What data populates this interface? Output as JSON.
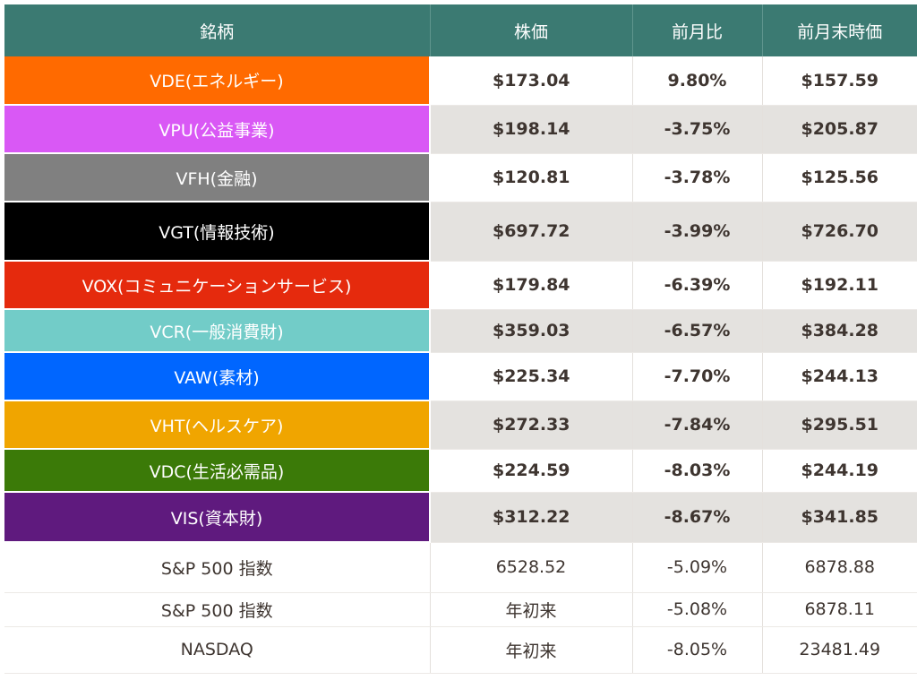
{
  "table": {
    "headers": [
      "銘柄",
      "株価",
      "前月比",
      "前月末時価"
    ],
    "rows": [
      {
        "name": "VDE(エネルギー)",
        "price": "$173.04",
        "change": "9.80%",
        "prev": "$157.59",
        "color": "#ff6a00"
      },
      {
        "name": "VPU(公益事業)",
        "price": "$198.14",
        "change": "-3.75%",
        "prev": "$205.87",
        "color": "#d958f5"
      },
      {
        "name": "VFH(金融)",
        "price": "$120.81",
        "change": "-3.78%",
        "prev": "$125.56",
        "color": "#808080"
      },
      {
        "name": "VGT(情報技術)",
        "price": "$697.72",
        "change": "-3.99%",
        "prev": "$726.70",
        "color": "#000000"
      },
      {
        "name": "VOX(コミュニケーションサービス)",
        "price": "$179.84",
        "change": "-6.39%",
        "prev": "$192.11",
        "color": "#e52a0d"
      },
      {
        "name": "VCR(一般消費財)",
        "price": "$359.03",
        "change": "-6.57%",
        "prev": "$384.28",
        "color": "#72ccc8"
      },
      {
        "name": "VAW(素材)",
        "price": "$225.34",
        "change": "-7.70%",
        "prev": "$244.13",
        "color": "#0066ff"
      },
      {
        "name": "VHT(ヘルスケア)",
        "price": "$272.33",
        "change": "-7.84%",
        "prev": "$295.51",
        "color": "#f0a500"
      },
      {
        "name": "VDC(生活必需品)",
        "price": "$224.59",
        "change": "-8.03%",
        "prev": "$244.19",
        "color": "#3b7a08"
      },
      {
        "name": "VIS(資本財)",
        "price": "$312.22",
        "change": "-8.67%",
        "prev": "$341.85",
        "color": "#5f1a7e"
      }
    ],
    "index_rows": [
      {
        "name": "S&P 500 指数",
        "price": "6528.52",
        "change": "-5.09%",
        "prev": "6878.88"
      },
      {
        "name": "S&P 500 指数",
        "price": "年初来",
        "change": "-5.08%",
        "prev": "6878.11"
      },
      {
        "name": "NASDAQ",
        "price": "年初来",
        "change": "-8.05%",
        "prev": "23481.49"
      }
    ]
  }
}
